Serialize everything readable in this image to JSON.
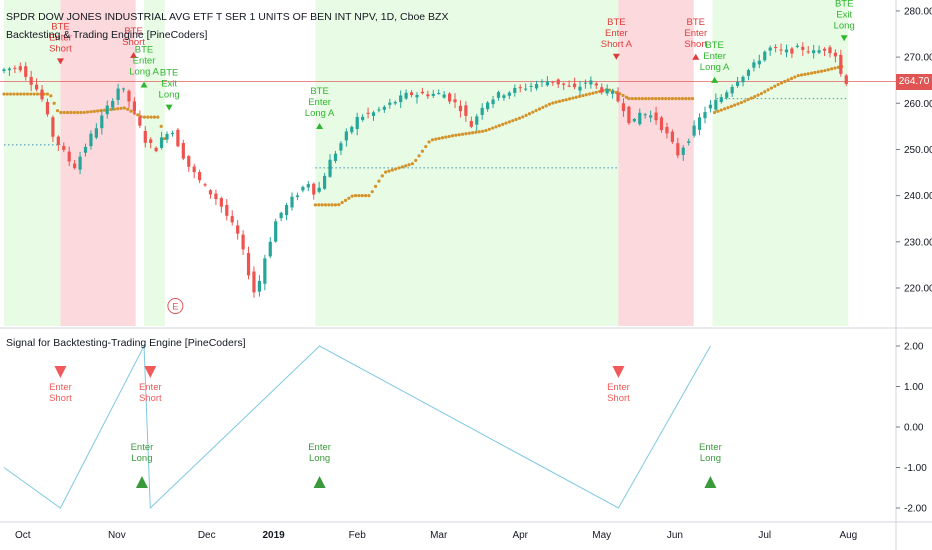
{
  "header": {
    "symbol_line": "SPDR DOW JONES INDUSTRIAL AVG ETF T SER 1 UNITS OF BEN INT NPV, 1D, Cboe BZX",
    "study_line": "Backtesting & Trading Engine [PineCoders]"
  },
  "lower_pane": {
    "title": "Signal for Backtesting-Trading Engine [PineCoders]"
  },
  "last_price": {
    "label": "264.70",
    "value": 264.7,
    "color": "#e05454"
  },
  "colors": {
    "up": "#26a69a",
    "down": "#ef5350",
    "stop_dots": "#d4922a",
    "long_zone": "#e8fbe4",
    "short_zone": "#fbd9dc",
    "signal_line": "#7ec8e3",
    "enter_long": "#3a9a3a",
    "enter_short": "#f05a5a"
  },
  "chart_data": [
    {
      "type": "candlestick",
      "title": "SPDR DOW JONES INDUSTRIAL AVG ETF T SER 1 UNITS OF BEN INT NPV, 1D, Cboe BZX",
      "x_tick_labels": [
        "Oct",
        "Nov",
        "Dec",
        "2019",
        "Feb",
        "Mar",
        "Apr",
        "May",
        "Jun",
        "Jul",
        "Aug"
      ],
      "y_ticks": [
        220,
        230,
        240,
        250,
        260,
        270,
        280
      ],
      "ylim": [
        213.5,
        281.5
      ],
      "ohlc_path": [
        [
          0,
          267
        ],
        [
          10,
          268
        ],
        [
          20,
          262
        ],
        [
          26,
          253
        ],
        [
          36,
          246
        ],
        [
          43,
          252
        ],
        [
          52,
          259
        ],
        [
          58,
          264
        ],
        [
          63,
          260
        ],
        [
          70,
          252
        ],
        [
          75,
          250
        ],
        [
          82,
          255
        ],
        [
          90,
          247
        ],
        [
          98,
          242
        ],
        [
          105,
          239
        ],
        [
          115,
          231
        ],
        [
          121,
          221
        ],
        [
          123,
          218
        ],
        [
          127,
          226
        ],
        [
          133,
          235
        ],
        [
          140,
          239
        ],
        [
          148,
          243
        ],
        [
          152,
          240
        ],
        [
          158,
          247
        ],
        [
          166,
          253
        ],
        [
          172,
          257
        ],
        [
          180,
          258
        ],
        [
          188,
          260
        ],
        [
          196,
          262
        ],
        [
          204,
          262
        ],
        [
          213,
          262
        ],
        [
          221,
          259
        ],
        [
          226,
          255
        ],
        [
          232,
          260
        ],
        [
          240,
          262
        ],
        [
          248,
          263
        ],
        [
          256,
          264
        ],
        [
          264,
          265
        ],
        [
          270,
          264
        ],
        [
          276,
          263
        ],
        [
          282,
          265
        ],
        [
          288,
          263
        ],
        [
          294,
          262
        ],
        [
          299,
          259
        ],
        [
          303,
          255
        ],
        [
          307,
          258
        ],
        [
          314,
          257
        ],
        [
          320,
          253
        ],
        [
          325,
          249
        ],
        [
          331,
          253
        ],
        [
          337,
          258
        ],
        [
          345,
          261
        ],
        [
          353,
          265
        ],
        [
          361,
          268
        ],
        [
          368,
          272
        ],
        [
          376,
          271
        ],
        [
          384,
          272
        ],
        [
          390,
          271
        ],
        [
          396,
          272
        ],
        [
          400,
          271
        ],
        [
          402,
          268
        ],
        [
          404,
          264.7
        ]
      ],
      "trailing_stop_segments": [
        [
          [
            0,
            262
          ],
          [
            22,
            262
          ],
          [
            26,
            258
          ],
          [
            38,
            258
          ],
          [
            58,
            259
          ],
          [
            66,
            257
          ],
          [
            74,
            257
          ],
          [
            77,
            252
          ]
        ],
        [
          [
            149,
            238
          ],
          [
            160,
            238
          ],
          [
            167,
            240
          ],
          [
            175,
            240
          ],
          [
            182,
            245
          ],
          [
            196,
            247
          ],
          [
            204,
            252
          ],
          [
            215,
            253
          ],
          [
            230,
            254
          ],
          [
            248,
            257
          ],
          [
            262,
            260
          ],
          [
            280,
            262
          ],
          [
            289,
            263
          ],
          [
            295,
            262
          ],
          [
            299,
            261
          ]
        ],
        [
          [
            299,
            261
          ],
          [
            330,
            261
          ]
        ],
        [
          [
            340,
            258
          ],
          [
            352,
            260
          ],
          [
            362,
            262
          ],
          [
            370,
            264
          ],
          [
            380,
            266
          ],
          [
            392,
            267
          ],
          [
            401,
            268
          ]
        ]
      ],
      "regions": [
        {
          "side": "long",
          "from_bar": 0,
          "to_bar": 27
        },
        {
          "side": "short",
          "from_bar": 27,
          "to_bar": 63
        },
        {
          "side": "long",
          "from_bar": 67,
          "to_bar": 77
        },
        {
          "side": "long",
          "from_bar": 149,
          "to_bar": 294
        },
        {
          "side": "short",
          "from_bar": 294,
          "to_bar": 330
        },
        {
          "side": "long",
          "from_bar": 339,
          "to_bar": 404
        }
      ],
      "entry_levels": [
        {
          "price": 251,
          "from_bar": 0,
          "to_bar": 27
        },
        {
          "price": 246,
          "from_bar": 149,
          "to_bar": 294
        },
        {
          "price": 261,
          "from_bar": 341,
          "to_bar": 404
        }
      ],
      "annotations": [
        {
          "text": "BTE\nEnter\nShort",
          "bar": 27,
          "price": 276,
          "arrow": "down"
        },
        {
          "text": "BTE\nShort",
          "bar": 62,
          "price": 275,
          "arrow": "up"
        },
        {
          "text": "BTE\nEnter\nLong A",
          "bar": 67,
          "price": 271,
          "arrow": "up"
        },
        {
          "text": "BTE\nExit\nLong",
          "bar": 79,
          "price": 266,
          "arrow": "down"
        },
        {
          "text": "BTE\nEnter\nLong A",
          "bar": 151,
          "price": 262,
          "arrow": "up"
        },
        {
          "text": "BTE\nEnter\nShort A",
          "bar": 293,
          "price": 277,
          "arrow": "down"
        },
        {
          "text": "BTE\nEnter\nShort",
          "bar": 331,
          "price": 277,
          "arrow": "up"
        },
        {
          "text": "BTE\nEnter\nLong A",
          "bar": 340,
          "price": 272,
          "arrow": "up"
        },
        {
          "text": "BTE\nExit\nLong",
          "bar": 402,
          "price": 281,
          "arrow": "down"
        }
      ],
      "event_marker": {
        "text": "E",
        "bar": 82,
        "date_note": "earnings"
      }
    },
    {
      "type": "line",
      "title": "Signal for Backtesting-Trading Engine [PineCoders]",
      "y_ticks": [
        2.0,
        1.0,
        0.0,
        -1.0,
        -2.0
      ],
      "y_tick_labels": [
        "2.00",
        "1.00",
        "0.00",
        "-1.00",
        "-2.00"
      ],
      "ylim": [
        -2.45,
        2.45
      ],
      "signal_path": [
        [
          0,
          -1
        ],
        [
          27,
          -2
        ],
        [
          67,
          2
        ],
        [
          70,
          -2
        ],
        [
          151,
          2
        ],
        [
          294,
          -2
        ],
        [
          338,
          2
        ]
      ],
      "markers": [
        {
          "text": "Enter\nShort",
          "bar": 27,
          "value": 1.45,
          "kind": "short"
        },
        {
          "text": "Enter\nShort",
          "bar": 70,
          "value": 1.45,
          "kind": "short"
        },
        {
          "text": "Enter\nShort",
          "bar": 294,
          "value": 1.45,
          "kind": "short"
        },
        {
          "text": "Enter\nLong",
          "bar": 66,
          "value": -1.45,
          "kind": "long"
        },
        {
          "text": "Enter\nLong",
          "bar": 151,
          "value": -1.45,
          "kind": "long"
        },
        {
          "text": "Enter\nLong",
          "bar": 338,
          "value": -1.45,
          "kind": "long"
        }
      ]
    }
  ]
}
